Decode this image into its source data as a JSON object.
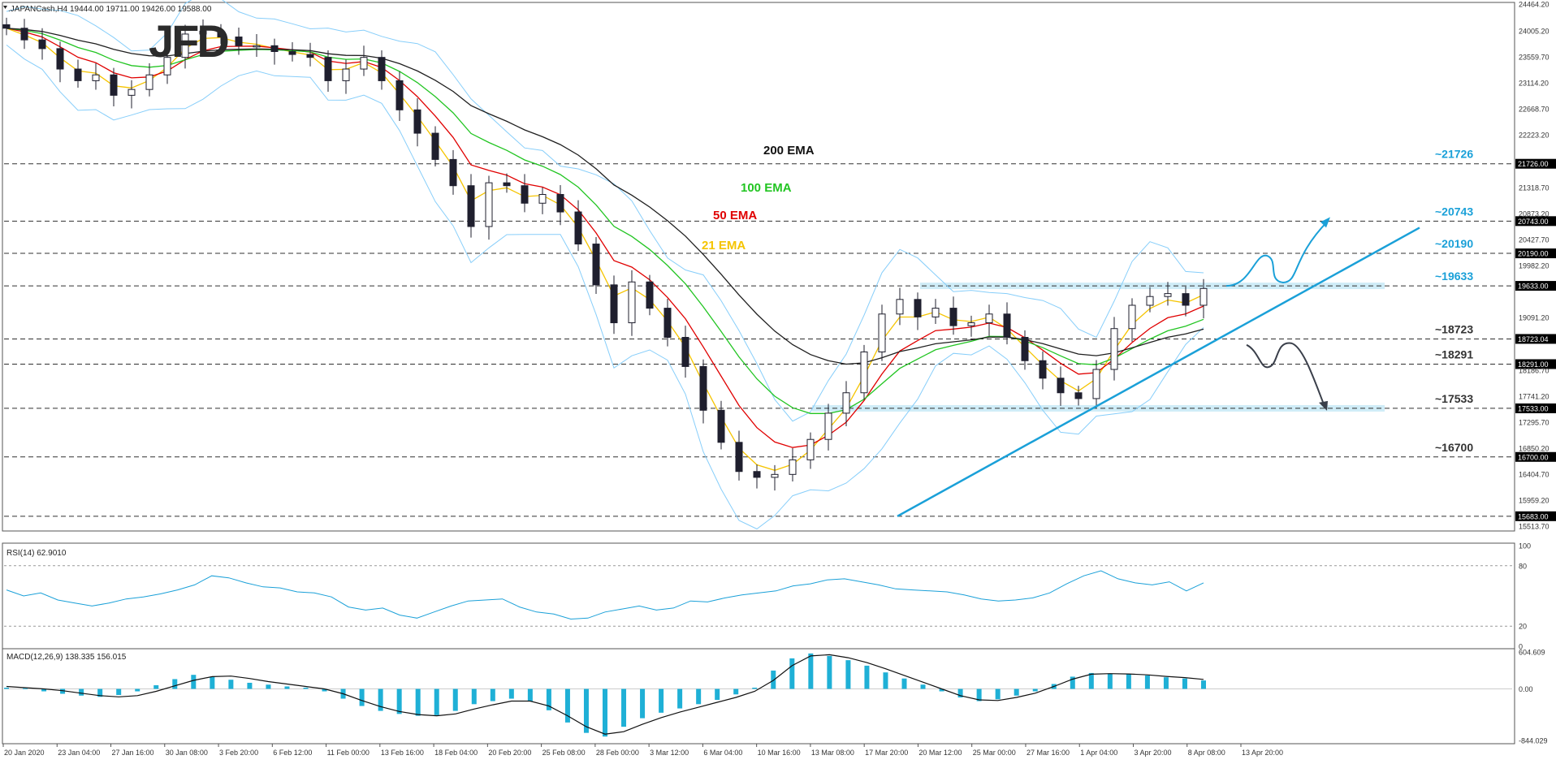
{
  "header": {
    "symbol_line": ".JAPANCash,H4  19444.00 19711.00 19426.00 19588.00"
  },
  "logo": {
    "text": "JFD"
  },
  "colors": {
    "candle": "#1f1f2e",
    "bollinger": "#87cefa",
    "ema21": "#f5c400",
    "ema50": "#e00000",
    "ema100": "#22c522",
    "ema200": "#1f1f1f",
    "annotation": "#1aa0d8",
    "zone": "#a8dcf0",
    "grid_dash": "#303030",
    "axis_text": "#333333"
  },
  "chart_data": [
    {
      "type": "candlestick",
      "panel": "price",
      "instrument": ".JAPANCash",
      "timeframe": "H4",
      "ohlc_last": {
        "open": 19444.0,
        "high": 19711.0,
        "low": 19426.0,
        "close": 19588.0
      },
      "x_labels": [
        "20 Jan 2020",
        "23 Jan 04:00",
        "27 Jan 16:00",
        "30 Jan 08:00",
        "3 Feb 20:00",
        "6 Feb 12:00",
        "11 Feb 00:00",
        "13 Feb 16:00",
        "18 Feb 04:00",
        "20 Feb 20:00",
        "25 Feb 08:00",
        "28 Feb 00:00",
        "3 Mar 12:00",
        "6 Mar 04:00",
        "10 Mar 16:00",
        "13 Mar 08:00",
        "17 Mar 20:00",
        "20 Mar 12:00",
        "25 Mar 00:00",
        "27 Mar 16:00",
        "1 Apr 04:00",
        "3 Apr 20:00",
        "8 Apr 08:00",
        "13 Apr 20:00"
      ],
      "y_ticks": [
        "24464.20",
        "24005.20",
        "23559.70",
        "23114.20",
        "22668.70",
        "22223.20",
        "21318.70",
        "20873.20",
        "20427.70",
        "19982.20",
        "19091.20",
        "18186.70",
        "17741.20",
        "17295.70",
        "16850.20",
        "16404.70",
        "15959.20",
        "15513.70"
      ],
      "ylim": [
        15513.7,
        24464.2
      ],
      "levels": [
        {
          "value": 21726,
          "axis_label": "21726.00",
          "annotation": "~21726"
        },
        {
          "value": 20743,
          "axis_label": "20743.00",
          "annotation": "~20743"
        },
        {
          "value": 20190,
          "axis_label": "20190.00",
          "annotation": "~20190"
        },
        {
          "value": 19633,
          "axis_label": "19633.00",
          "annotation": "~19633"
        },
        {
          "value": 18723,
          "axis_label": "18723.04",
          "annotation": "~18723"
        },
        {
          "value": 18291,
          "axis_label": "18291.00",
          "annotation": "~18291"
        },
        {
          "value": 17533,
          "axis_label": "17533.00",
          "annotation": "~17533"
        },
        {
          "value": 16700,
          "axis_label": "16700.00",
          "annotation": "~16700"
        },
        {
          "value": 15683,
          "axis_label": "15683.00",
          "annotation": ""
        }
      ],
      "series_labels": [
        "200 EMA",
        "100 EMA",
        "50 EMA",
        "21 EMA"
      ],
      "close_approx": [
        24050,
        23850,
        23700,
        23350,
        23150,
        23250,
        22900,
        23000,
        23250,
        23550,
        23950,
        24000,
        23900,
        23750,
        23750,
        23650,
        23600,
        23550,
        23150,
        23350,
        23550,
        23150,
        22650,
        22250,
        21800,
        21350,
        20650,
        21400,
        21350,
        21050,
        21200,
        20900,
        20350,
        19650,
        19000,
        19700,
        19250,
        18750,
        18250,
        17500,
        16950,
        16450,
        16350,
        16400,
        16650,
        17000,
        17450,
        17800,
        18500,
        19150,
        19400,
        19100,
        19250,
        18950,
        19000,
        19150,
        18750,
        18350,
        18050,
        17800,
        17700,
        18200,
        18900,
        19300,
        19450,
        19500,
        19300,
        19588
      ]
    },
    {
      "type": "line",
      "panel": "RSI",
      "title": "RSI(14) 62.9010",
      "ylim": [
        0,
        100
      ],
      "y_ticks": [
        "100",
        "80",
        "20",
        "0"
      ],
      "levels": [
        80,
        20
      ],
      "values": [
        56,
        50,
        53,
        46,
        43,
        40,
        43,
        47,
        49,
        52,
        56,
        61,
        70,
        68,
        63,
        59,
        58,
        54,
        53,
        49,
        39,
        36,
        38,
        31,
        28,
        34,
        40,
        45,
        46,
        47,
        39,
        34,
        32,
        27,
        28,
        34,
        37,
        40,
        36,
        38,
        45,
        44,
        48,
        51,
        53,
        55,
        60,
        62,
        66,
        67,
        64,
        61,
        57,
        56,
        55,
        54,
        51,
        47,
        45,
        46,
        48,
        53,
        62,
        70,
        75,
        67,
        63,
        61,
        64,
        55,
        63
      ]
    },
    {
      "type": "bar",
      "panel": "MACD",
      "title": "MACD(12,26,9) 138.335 156.015",
      "ylim": [
        -844.029,
        604.609
      ],
      "y_ticks": [
        "604.609",
        "0.00",
        "-844.029"
      ],
      "values": [
        20,
        10,
        -40,
        -80,
        -110,
        -130,
        -100,
        -40,
        60,
        160,
        230,
        200,
        150,
        100,
        70,
        40,
        20,
        -40,
        -160,
        -280,
        -360,
        -410,
        -440,
        -430,
        -360,
        -250,
        -200,
        -160,
        -200,
        -350,
        -550,
        -720,
        -780,
        -620,
        -480,
        -390,
        -320,
        -250,
        -180,
        -90,
        20,
        300,
        500,
        580,
        540,
        470,
        380,
        270,
        170,
        70,
        -40,
        -140,
        -200,
        -170,
        -110,
        -40,
        80,
        200,
        260,
        250,
        240,
        220,
        190,
        170,
        138
      ],
      "signal": [
        40,
        20,
        0,
        -30,
        -70,
        -110,
        -130,
        -110,
        -40,
        50,
        140,
        200,
        210,
        170,
        120,
        80,
        40,
        0,
        -80,
        -190,
        -290,
        -370,
        -420,
        -440,
        -410,
        -330,
        -260,
        -200,
        -200,
        -280,
        -440,
        -620,
        -740,
        -700,
        -580,
        -470,
        -380,
        -300,
        -220,
        -140,
        -40,
        140,
        380,
        540,
        560,
        510,
        430,
        330,
        220,
        110,
        0,
        -110,
        -180,
        -190,
        -140,
        -70,
        40,
        160,
        240,
        250,
        245,
        230,
        205,
        185,
        156
      ]
    }
  ]
}
